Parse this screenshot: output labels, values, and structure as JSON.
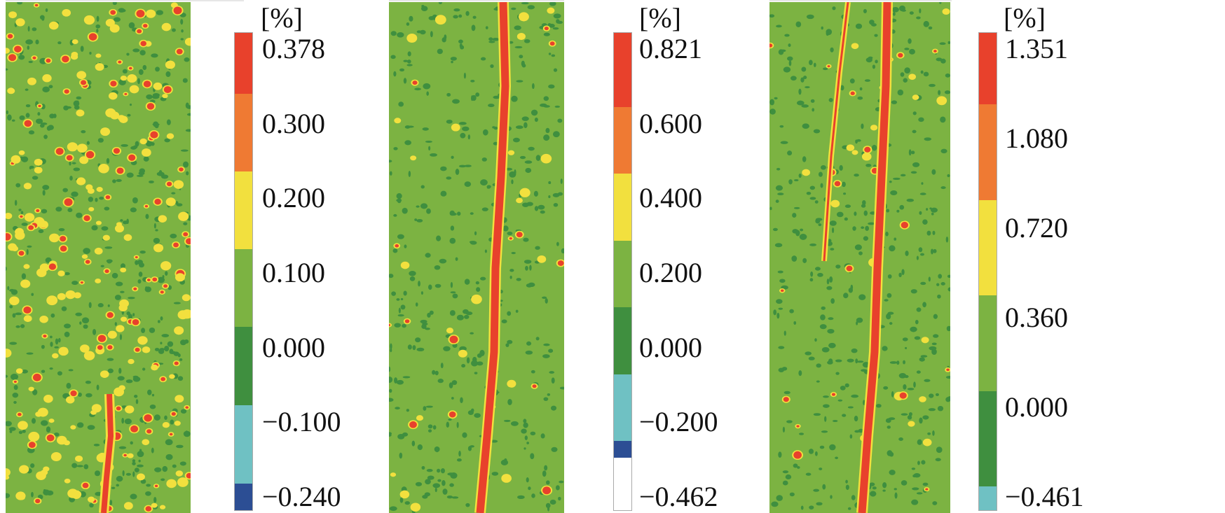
{
  "chart_data": {
    "type": "heatmap",
    "title": "",
    "panels": [
      {
        "name": "panel-1",
        "unit": "[%]",
        "levels": [
          "0.378",
          "0.300",
          "0.200",
          "0.100",
          "0.000",
          "−0.100",
          "−0.240"
        ],
        "range": [
          -0.24,
          0.378
        ],
        "colors": [
          "#e8412c",
          "#ef7a33",
          "#f2e03e",
          "#7cb342",
          "#3f8f3f",
          "#6fc1c3",
          "#2c4e94"
        ],
        "weights": [
          0.128,
          0.163,
          0.162,
          0.163,
          0.164,
          0.164,
          0.056
        ],
        "crack": "short-bottom"
      },
      {
        "name": "panel-2",
        "unit": "[%]",
        "levels": [
          "0.821",
          "0.600",
          "0.400",
          "0.200",
          "0.000",
          "−0.200",
          "−0.462"
        ],
        "range": [
          -0.462,
          0.821
        ],
        "colors": [
          "#e8412c",
          "#ef7a33",
          "#f2e03e",
          "#7cb342",
          "#3f8f3f",
          "#6fc1c3",
          "#2c4e94"
        ],
        "weights": [
          0.155,
          0.14,
          0.14,
          0.14,
          0.14,
          0.14,
          0.035
        ],
        "crack": "single-full"
      },
      {
        "name": "panel-3",
        "unit": "[%]",
        "levels": [
          "1.351",
          "1.080",
          "0.720",
          "0.360",
          "0.000",
          "−0.461"
        ],
        "range": [
          -0.461,
          1.351
        ],
        "colors": [
          "#e8412c",
          "#ef7a33",
          "#f2e03e",
          "#7cb342",
          "#3f8f3f",
          "#6fc1c3"
        ],
        "weights": [
          0.15,
          0.2,
          0.2,
          0.2,
          0.2,
          0.05
        ],
        "crack": "double"
      }
    ]
  }
}
